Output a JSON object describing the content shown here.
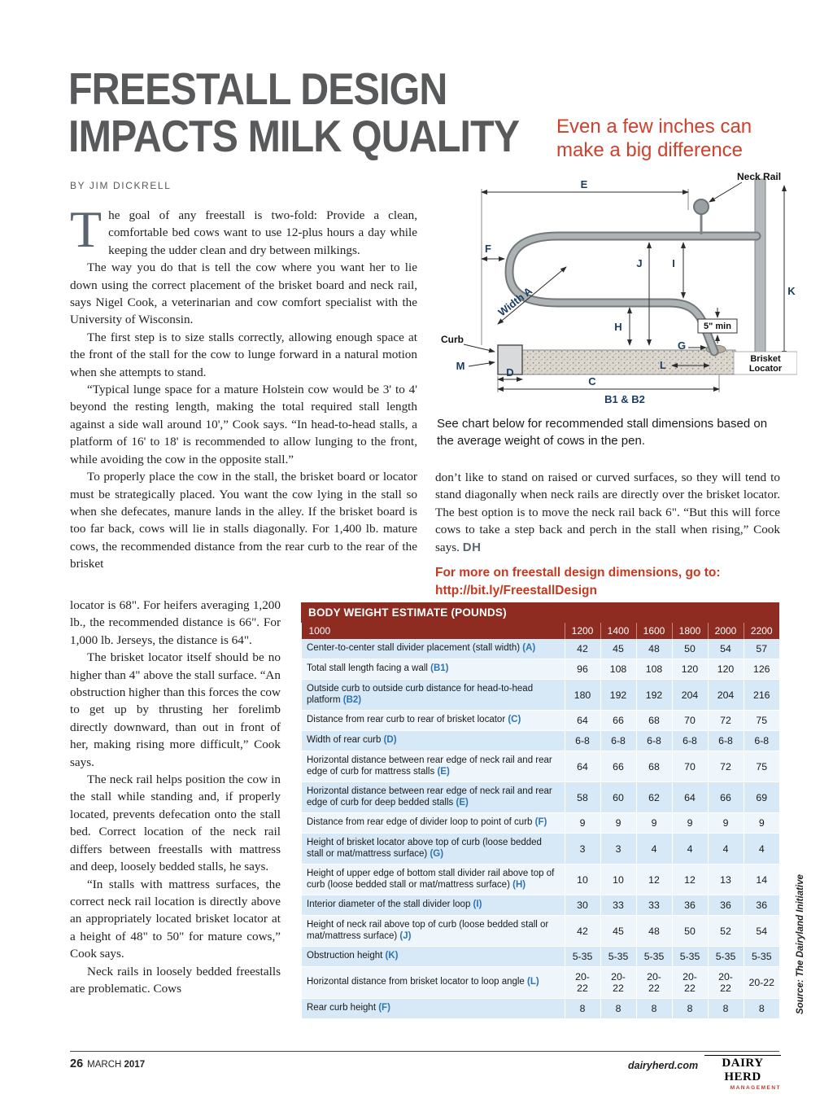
{
  "colors": {
    "title_gray": "#58595b",
    "subtitle_red": "#d0402c",
    "cta_red": "#c8381f",
    "table_header_red": "#8e2c21",
    "table_row_blue": "#d7e9f6",
    "letter_blue": "#2e74b5"
  },
  "header": {
    "title_line1": "FREESTALL DESIGN",
    "title_line2": "IMPACTS MILK QUALITY",
    "subtitle_line1": "Even a few inches can",
    "subtitle_line2": "make a big difference",
    "byline": "BY JIM DICKRELL"
  },
  "article": {
    "dropcap": "T",
    "p1": "he goal of any freestall is two-fold: Provide a clean, comfortable bed cows want to use 12-plus hours a day while keeping the udder clean and dry between milkings.",
    "p2": "The way you do that is tell the cow where you want her to lie down using the correct placement of the brisket board and neck rail, says Nigel Cook, a veterinarian and cow comfort specialist with the University of Wisconsin.",
    "p3": "The first step is to size stalls correctly, allowing enough space at the front of the stall for the cow to lunge forward in a natural motion when she attempts to stand.",
    "p4": "“Typical lunge space for a mature Holstein cow would be 3' to 4' beyond the resting length, making the total required stall length against a side wall around 10',” Cook says. “In head-to-head stalls, a platform of 16' to 18' is recommended to allow lunging to the front, while avoiding the cow in the opposite stall.”",
    "p5_wide": "To properly place the cow in the stall, the brisket board or locator must be strategically placed. You want the cow lying in the stall so when she defecates, manure lands in the alley. If the brisket board is too far back, cows will lie in stalls diagonally. For 1,400 lb. mature cows, the recommended distance from the rear curb to the rear of the brisket",
    "p5_cont": "locator is 68\". For heifers averaging 1,200 lb., the recommended distance is 66\". For 1,000 lb. Jerseys, the distance is 64\".",
    "p6": "The brisket locator itself should be no higher than 4\" above the stall surface. “An obstruction higher than this forces the cow to get up by thrusting her forelimb directly downward, than out in front of her, making rising more difficult,” Cook says.",
    "p7": "The neck rail helps position the cow in the stall while standing and, if properly located, prevents defecation onto the stall bed. Correct location of the neck rail differs between freestalls with mattress and deep, loosely bedded stalls, he says.",
    "p8": "“In stalls with mattress surfaces, the correct neck rail location is directly above an appropriately located brisket locator at a height of 48\" to 50\" for mature cows,” Cook says.",
    "p9": "Neck rails in loosely bedded freestalls are problematic. Cows",
    "p10": "don’t like to stand on raised or curved surfaces, so they will tend to stand diagonally when neck rails are directly over the brisket locator. The best option is to move the neck rail back 6\". “But this will force cows to take a step back and perch in the stall when rising,” Cook says.",
    "endmark": "DH",
    "cta_line1": "For more on freestall design dimensions, go to:",
    "cta_link": "http://bit.ly/FreestallDesign"
  },
  "diagram": {
    "caption": "See chart below for recommended stall dimensions based on the average weight of cows in the pen.",
    "labels": {
      "neck_rail": "Neck Rail",
      "e": "E",
      "f": "F",
      "j": "J",
      "i": "I",
      "k": "K",
      "width_a": "Width A",
      "h": "H",
      "five_min": "5\" min",
      "curb": "Curb",
      "m": "M",
      "d": "D",
      "g": "G",
      "l": "L",
      "c": "C",
      "b1b2": "B1 & B2",
      "brisket_line1": "Brisket",
      "brisket_line2": "Locator"
    }
  },
  "table": {
    "title": "BODY WEIGHT ESTIMATE (POUNDS)",
    "first_header": "1000",
    "weights": [
      "1200",
      "1400",
      "1600",
      "1800",
      "2000",
      "2200"
    ],
    "rows": [
      {
        "label": "Center-to-center stall divider placement (stall width)",
        "letter": "A",
        "values": [
          "42",
          "45",
          "48",
          "50",
          "54",
          "57"
        ]
      },
      {
        "label": "Total stall length facing a wall",
        "letter": "B1",
        "values": [
          "96",
          "108",
          "108",
          "120",
          "120",
          "126"
        ]
      },
      {
        "label": "Outside curb to outside curb distance for head-to-head platform",
        "letter": "B2",
        "values": [
          "180",
          "192",
          "192",
          "204",
          "204",
          "216"
        ]
      },
      {
        "label": "Distance from rear curb to rear of brisket locator",
        "letter": "C",
        "values": [
          "64",
          "66",
          "68",
          "70",
          "72",
          "75"
        ]
      },
      {
        "label": "Width of rear curb",
        "letter": "D",
        "values": [
          "6-8",
          "6-8",
          "6-8",
          "6-8",
          "6-8",
          "6-8"
        ]
      },
      {
        "label": "Horizontal distance between rear edge of neck rail and rear edge of curb for mattress stalls",
        "letter": "E",
        "values": [
          "64",
          "66",
          "68",
          "70",
          "72",
          "75"
        ]
      },
      {
        "label": "Horizontal distance between rear edge of neck rail and rear edge of curb for deep bedded stalls",
        "letter": "E",
        "values": [
          "58",
          "60",
          "62",
          "64",
          "66",
          "69"
        ]
      },
      {
        "label": "Distance from rear edge of divider loop to point of curb",
        "letter": "F",
        "values": [
          "9",
          "9",
          "9",
          "9",
          "9",
          "9"
        ]
      },
      {
        "label": "Height of brisket locator above top of curb (loose bedded stall or mat/mattress surface)",
        "letter": "G",
        "values": [
          "3",
          "3",
          "4",
          "4",
          "4",
          "4"
        ]
      },
      {
        "label": "Height of upper edge of bottom stall divider rail above top of curb (loose bedded stall or mat/mattress surface)",
        "letter": "H",
        "values": [
          "10",
          "10",
          "12",
          "12",
          "13",
          "14"
        ]
      },
      {
        "label": "Interior diameter of the stall divider loop",
        "letter": "I",
        "values": [
          "30",
          "33",
          "33",
          "36",
          "36",
          "36"
        ]
      },
      {
        "label": "Height of neck rail above top of curb (loose bedded stall or mat/mattress surface)",
        "letter": "J",
        "values": [
          "42",
          "45",
          "48",
          "50",
          "52",
          "54"
        ]
      },
      {
        "label": "Obstruction height",
        "letter": "K",
        "values": [
          "5-35",
          "5-35",
          "5-35",
          "5-35",
          "5-35",
          "5-35"
        ]
      },
      {
        "label": "Horizontal distance from brisket locator to loop angle",
        "letter": "L",
        "values": [
          "20-22",
          "20-22",
          "20-22",
          "20-22",
          "20-22",
          "20-22"
        ]
      },
      {
        "label": "Rear curb height",
        "letter": "F",
        "values": [
          "8",
          "8",
          "8",
          "8",
          "8",
          "8"
        ]
      }
    ],
    "source": "Source: The Dairyland Initiative"
  },
  "footer": {
    "page_number": "26",
    "month": "MARCH",
    "year": "2017",
    "website": "dairyherd.com",
    "logo_line1": "DAIRY HERD",
    "logo_line2": "MANAGEMENT"
  }
}
